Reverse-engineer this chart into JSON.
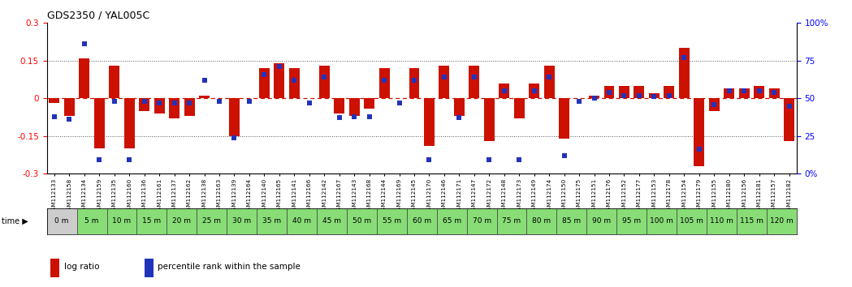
{
  "title": "GDS2350 / YAL005C",
  "bar_color": "#cc1100",
  "dot_color": "#2233bb",
  "categories": [
    "GSM112133",
    "GSM112158",
    "GSM112134",
    "GSM112159",
    "GSM112135",
    "GSM112160",
    "GSM112136",
    "GSM112161",
    "GSM112137",
    "GSM112162",
    "GSM112138",
    "GSM112163",
    "GSM112139",
    "GSM112164",
    "GSM112140",
    "GSM112165",
    "GSM112141",
    "GSM112166",
    "GSM112142",
    "GSM112167",
    "GSM112143",
    "GSM112168",
    "GSM112144",
    "GSM112169",
    "GSM112145",
    "GSM112170",
    "GSM112146",
    "GSM112171",
    "GSM112147",
    "GSM112172",
    "GSM112148",
    "GSM112173",
    "GSM112149",
    "GSM112174",
    "GSM112150",
    "GSM112175",
    "GSM112151",
    "GSM112176",
    "GSM112152",
    "GSM112177",
    "GSM112153",
    "GSM112178",
    "GSM112154",
    "GSM112179",
    "GSM112155",
    "GSM112180",
    "GSM112156",
    "GSM112181",
    "GSM112157",
    "GSM112182"
  ],
  "log_ratio": [
    -0.02,
    -0.07,
    0.16,
    -0.2,
    0.13,
    -0.2,
    -0.05,
    -0.06,
    -0.08,
    -0.07,
    0.01,
    0.0,
    -0.15,
    0.0,
    0.12,
    0.14,
    0.12,
    0.0,
    0.13,
    -0.06,
    -0.07,
    -0.04,
    0.12,
    0.0,
    0.12,
    -0.19,
    0.13,
    -0.07,
    0.13,
    -0.17,
    0.06,
    -0.08,
    0.06,
    0.13,
    -0.16,
    0.0,
    0.01,
    0.05,
    0.05,
    0.05,
    0.02,
    0.05,
    0.2,
    -0.27,
    -0.05,
    0.04,
    0.04,
    0.05,
    0.04,
    -0.17
  ],
  "percentile": [
    38,
    36,
    86,
    9,
    48,
    9,
    48,
    47,
    47,
    47,
    62,
    48,
    24,
    48,
    66,
    71,
    62,
    47,
    64,
    37,
    38,
    38,
    62,
    47,
    62,
    9,
    64,
    37,
    64,
    9,
    55,
    9,
    55,
    64,
    12,
    48,
    50,
    54,
    52,
    52,
    51,
    52,
    77,
    16,
    46,
    55,
    55,
    55,
    54,
    45
  ],
  "time_labels": [
    "0 m",
    "5 m",
    "10 m",
    "15 m",
    "20 m",
    "25 m",
    "30 m",
    "35 m",
    "40 m",
    "45 m",
    "50 m",
    "55 m",
    "60 m",
    "65 m",
    "70 m",
    "75 m",
    "80 m",
    "85 m",
    "90 m",
    "95 m",
    "100 m",
    "105 m",
    "110 m",
    "115 m",
    "120 m"
  ],
  "time_start_indices": [
    0,
    2,
    4,
    6,
    8,
    10,
    12,
    14,
    16,
    18,
    20,
    22,
    24,
    26,
    28,
    30,
    32,
    34,
    36,
    38,
    40,
    42,
    44,
    46,
    48
  ],
  "ylim": [
    -0.3,
    0.3
  ],
  "y2lim": [
    0,
    100
  ],
  "yticks_left": [
    -0.3,
    -0.15,
    0.0,
    0.15,
    0.3
  ],
  "ytick_labels_left": [
    "-0.3",
    "-0.15",
    "0",
    "0.15",
    "0.3"
  ],
  "y2ticks": [
    0,
    25,
    50,
    75,
    100
  ],
  "y2tick_labels": [
    "0%",
    "25",
    "50",
    "75",
    "100%"
  ],
  "bg_color": "#ffffff",
  "time_strip_gray": "#cccccc",
  "time_strip_green": "#88dd77",
  "legend_log": "log ratio",
  "legend_pct": "percentile rank within the sample"
}
